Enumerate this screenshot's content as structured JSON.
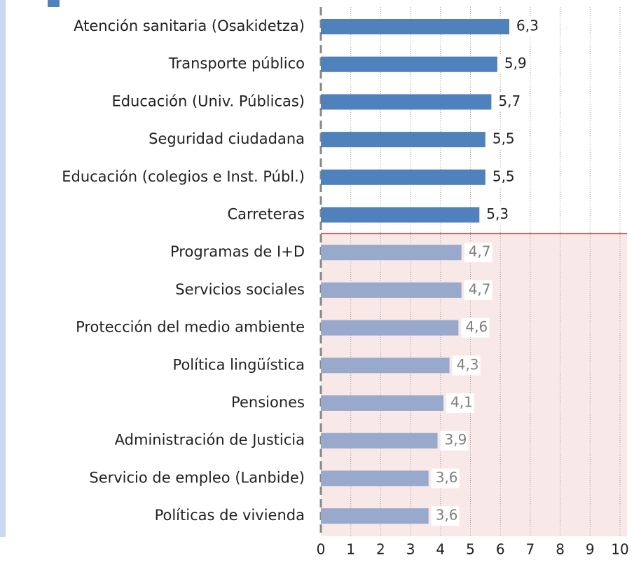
{
  "chart_data": {
    "type": "barh",
    "categories": [
      "Atención sanitaria (Osakidetza)",
      "Transporte público",
      "Educación (Univ. Públicas)",
      "Seguridad ciudadana",
      "Educación (colegios e Inst. Públ.)",
      "Carreteras",
      "Programas de I+D",
      "Servicios sociales",
      "Protección del medio ambiente",
      "Política lingüística",
      "Pensiones",
      "Administración de Justicia",
      "Servicio de empleo (Lanbide)",
      "Políticas de vivienda"
    ],
    "values": [
      6.3,
      5.9,
      5.7,
      5.5,
      5.5,
      5.3,
      4.7,
      4.7,
      4.6,
      4.3,
      4.1,
      3.9,
      3.6,
      3.6
    ],
    "value_labels": [
      "6,3",
      "5,9",
      "5,7",
      "5,5",
      "5,5",
      "5,3",
      "4,7",
      "4,7",
      "4,6",
      "4,3",
      "4,1",
      "3,9",
      "3,6",
      "3,6"
    ],
    "bar_colors": [
      "#4f81bd",
      "#4f81bd",
      "#4f81bd",
      "#4f81bd",
      "#4f81bd",
      "#4f81bd",
      "#98a9cb",
      "#98a9cb",
      "#98a9cb",
      "#98a9cb",
      "#98a9cb",
      "#98a9cb",
      "#98a9cb",
      "#98a9cb"
    ],
    "value_label_colors": [
      "#222222",
      "#222222",
      "#222222",
      "#222222",
      "#222222",
      "#222222",
      "#7f7f7f",
      "#7f7f7f",
      "#7f7f7f",
      "#7f7f7f",
      "#7f7f7f",
      "#7f7f7f",
      "#7f7f7f",
      "#7f7f7f"
    ],
    "xlim": [
      0,
      10
    ],
    "xticks": [
      0,
      1,
      2,
      3,
      4,
      5,
      6,
      7,
      8,
      9,
      10
    ],
    "grid": true
  }
}
